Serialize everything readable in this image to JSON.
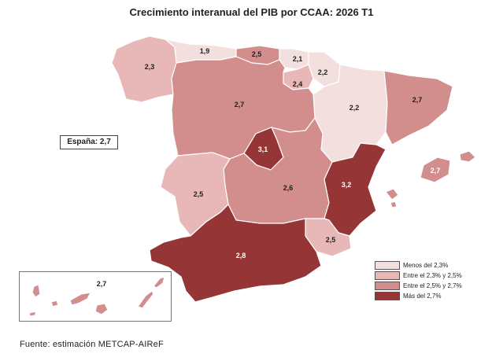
{
  "title": "Crecimiento interanual del PIB por CCAA: 2026 T1",
  "spain_total": "España: 2,7",
  "source": "Fuente: estimación METCAP-AIReF",
  "colors": {
    "cat1": "#f4dfdf",
    "cat2": "#e8b7b7",
    "cat3": "#d28d8d",
    "cat4": "#953535"
  },
  "legend": [
    {
      "label": "Menos del 2,3%",
      "color": "#f4dfdf"
    },
    {
      "label": "Entre el 2,3% y 2,5%",
      "color": "#e8b7b7"
    },
    {
      "label": "Entre el 2,5% y 2,7%",
      "color": "#d28d8d"
    },
    {
      "label": "Más del 2,7%",
      "color": "#953535"
    }
  ],
  "regions": {
    "galicia": {
      "value": "2,3",
      "category": "cat2"
    },
    "asturias": {
      "value": "1,9",
      "category": "cat1"
    },
    "cantabria": {
      "value": "2,5",
      "category": "cat3"
    },
    "pais_vasco": {
      "value": "2,1",
      "category": "cat1"
    },
    "navarra": {
      "value": "2,2",
      "category": "cat1"
    },
    "la_rioja": {
      "value": "2,4",
      "category": "cat2"
    },
    "aragon": {
      "value": "2,2",
      "category": "cat1"
    },
    "cataluna": {
      "value": "2,7",
      "category": "cat3"
    },
    "castilla_leon": {
      "value": "2,7",
      "category": "cat3"
    },
    "madrid": {
      "value": "3,1",
      "category": "cat4"
    },
    "castilla_la_mancha": {
      "value": "2,6",
      "category": "cat3"
    },
    "extremadura": {
      "value": "2,5",
      "category": "cat2"
    },
    "comunitat_valenciana": {
      "value": "3,2",
      "category": "cat4"
    },
    "baleares": {
      "value": "2,7",
      "category": "cat3"
    },
    "murcia": {
      "value": "2,5",
      "category": "cat2"
    },
    "andalucia": {
      "value": "2,8",
      "category": "cat4"
    },
    "canarias": {
      "value": "2,7",
      "category": "cat3"
    }
  }
}
